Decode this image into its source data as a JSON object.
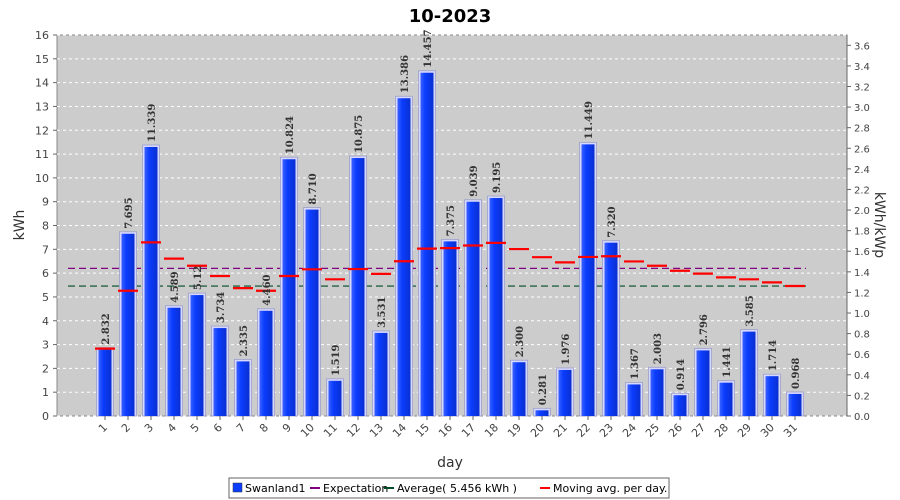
{
  "chart_data": {
    "type": "bar",
    "title": "10-2023",
    "xlabel": "day",
    "ylabel": "kWh",
    "y2label": "kWh/kWp",
    "ylim": [
      0,
      16
    ],
    "y2lim": [
      0,
      3.7
    ],
    "yticks": [
      "0",
      "1",
      "2",
      "3",
      "4",
      "5",
      "6",
      "7",
      "8",
      "9",
      "10",
      "11",
      "12",
      "13",
      "14",
      "15",
      "16"
    ],
    "y2ticks": [
      "0.0",
      "0.2",
      "0.4",
      "0.6",
      "0.8",
      "1.0",
      "1.2",
      "1.4",
      "1.6",
      "1.8",
      "2.0",
      "2.2",
      "2.4",
      "2.6",
      "2.8",
      "3.0",
      "3.2",
      "3.4",
      "3.6"
    ],
    "categories": [
      "1",
      "2",
      "3",
      "4",
      "5",
      "6",
      "7",
      "8",
      "9",
      "10",
      "11",
      "12",
      "13",
      "14",
      "15",
      "16",
      "17",
      "18",
      "19",
      "20",
      "21",
      "22",
      "23",
      "24",
      "25",
      "26",
      "27",
      "28",
      "29",
      "30",
      "31"
    ],
    "series": [
      {
        "name": "Swanland1",
        "values": [
          2.832,
          7.695,
          11.339,
          4.589,
          5.12,
          3.734,
          2.335,
          4.46,
          10.824,
          8.71,
          1.519,
          10.875,
          3.531,
          13.386,
          14.457,
          7.375,
          9.039,
          9.195,
          2.3,
          0.281,
          1.976,
          11.449,
          7.32,
          1.367,
          2.003,
          0.914,
          2.796,
          1.441,
          3.585,
          1.714,
          0.968
        ],
        "labels": [
          "2.832",
          "7.695",
          "11.339",
          "4.589",
          "5.12",
          "3.734",
          "2.335",
          "4.460",
          "10.824",
          "8.710",
          "1.519",
          "10.875",
          "3.531",
          "13.386",
          "14.457",
          "7.375",
          "9.039",
          "9.195",
          "2.300",
          "0.281",
          "1.976",
          "11.449",
          "7.320",
          "1.367",
          "2.003",
          "0.914",
          "2.796",
          "1.441",
          "3.585",
          "1.714",
          "0.968"
        ]
      },
      {
        "name": "Moving avg. per day.",
        "values": [
          2.83,
          5.26,
          7.29,
          6.61,
          6.31,
          5.88,
          5.37,
          5.26,
          5.88,
          6.16,
          5.74,
          6.17,
          5.97,
          6.5,
          7.03,
          7.05,
          7.16,
          7.27,
          7.01,
          6.67,
          6.45,
          6.68,
          6.71,
          6.49,
          6.31,
          6.1,
          5.98,
          5.82,
          5.74,
          5.61,
          5.46
        ]
      }
    ],
    "expectation": {
      "name": "Expectation",
      "value": 6.2
    },
    "average": {
      "name": "Average( 5.456 kWh )",
      "value": 5.456
    },
    "legend_position": "bottom",
    "grid": true,
    "colors": {
      "bar": "#0b3dff",
      "bar_edge": "#8fa6ff",
      "moving_avg": "#ff0000",
      "expectation": "#800080",
      "average": "#004d26",
      "plot_bg": "#cccccc",
      "grid": "#ffffff"
    }
  }
}
